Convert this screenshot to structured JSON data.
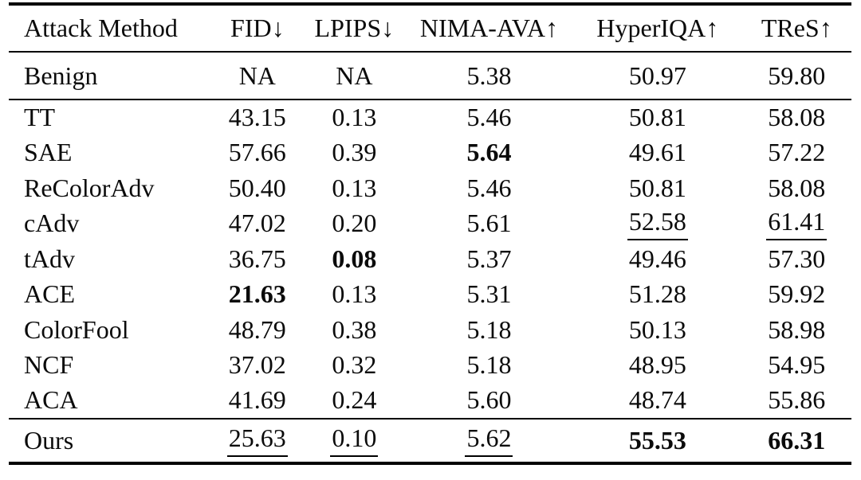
{
  "colors": {
    "background": "#ffffff",
    "text": "#0b0b0b",
    "rule": "#000000"
  },
  "table": {
    "header": {
      "cells": [
        {
          "label": "Attack Method",
          "arrow": ""
        },
        {
          "label": "FID",
          "arrow": "↓"
        },
        {
          "label": "LPIPS",
          "arrow": "↓"
        },
        {
          "label": "NIMA-AVA",
          "arrow": "↑"
        },
        {
          "label": "HyperIQA",
          "arrow": "↑"
        },
        {
          "label": "TReS",
          "arrow": "↑"
        }
      ]
    },
    "sections": [
      {
        "name": "benign",
        "rows": [
          {
            "method": "Benign",
            "cells": [
              {
                "text": "NA",
                "style": "normal"
              },
              {
                "text": "NA",
                "style": "normal"
              },
              {
                "text": "5.38",
                "style": "normal"
              },
              {
                "text": "50.97",
                "style": "normal"
              },
              {
                "text": "59.80",
                "style": "normal"
              }
            ]
          }
        ]
      },
      {
        "name": "attacks",
        "rows": [
          {
            "method": "TT",
            "cells": [
              {
                "text": "43.15",
                "style": "normal"
              },
              {
                "text": "0.13",
                "style": "normal"
              },
              {
                "text": "5.46",
                "style": "normal"
              },
              {
                "text": "50.81",
                "style": "normal"
              },
              {
                "text": "58.08",
                "style": "normal"
              }
            ]
          },
          {
            "method": "SAE",
            "cells": [
              {
                "text": "57.66",
                "style": "normal"
              },
              {
                "text": "0.39",
                "style": "normal"
              },
              {
                "text": "5.64",
                "style": "bold"
              },
              {
                "text": "49.61",
                "style": "normal"
              },
              {
                "text": "57.22",
                "style": "normal"
              }
            ]
          },
          {
            "method": "ReColorAdv",
            "cells": [
              {
                "text": "50.40",
                "style": "normal"
              },
              {
                "text": "0.13",
                "style": "normal"
              },
              {
                "text": "5.46",
                "style": "normal"
              },
              {
                "text": "50.81",
                "style": "normal"
              },
              {
                "text": "58.08",
                "style": "normal"
              }
            ]
          },
          {
            "method": "cAdv",
            "cells": [
              {
                "text": "47.02",
                "style": "normal"
              },
              {
                "text": "0.20",
                "style": "normal"
              },
              {
                "text": "5.61",
                "style": "normal"
              },
              {
                "text": "52.58",
                "style": "underline"
              },
              {
                "text": "61.41",
                "style": "underline"
              }
            ]
          },
          {
            "method": "tAdv",
            "cells": [
              {
                "text": "36.75",
                "style": "normal"
              },
              {
                "text": "0.08",
                "style": "bold"
              },
              {
                "text": "5.37",
                "style": "normal"
              },
              {
                "text": "49.46",
                "style": "normal"
              },
              {
                "text": "57.30",
                "style": "normal"
              }
            ]
          },
          {
            "method": "ACE",
            "cells": [
              {
                "text": "21.63",
                "style": "bold"
              },
              {
                "text": "0.13",
                "style": "normal"
              },
              {
                "text": "5.31",
                "style": "normal"
              },
              {
                "text": "51.28",
                "style": "normal"
              },
              {
                "text": "59.92",
                "style": "normal"
              }
            ]
          },
          {
            "method": "ColorFool",
            "cells": [
              {
                "text": "48.79",
                "style": "normal"
              },
              {
                "text": "0.38",
                "style": "normal"
              },
              {
                "text": "5.18",
                "style": "normal"
              },
              {
                "text": "50.13",
                "style": "normal"
              },
              {
                "text": "58.98",
                "style": "normal"
              }
            ]
          },
          {
            "method": "NCF",
            "cells": [
              {
                "text": "37.02",
                "style": "normal"
              },
              {
                "text": "0.32",
                "style": "normal"
              },
              {
                "text": "5.18",
                "style": "normal"
              },
              {
                "text": "48.95",
                "style": "normal"
              },
              {
                "text": "54.95",
                "style": "normal"
              }
            ]
          },
          {
            "method": "ACA",
            "cells": [
              {
                "text": "41.69",
                "style": "normal"
              },
              {
                "text": "0.24",
                "style": "normal"
              },
              {
                "text": "5.60",
                "style": "normal"
              },
              {
                "text": "48.74",
                "style": "normal"
              },
              {
                "text": "55.86",
                "style": "normal"
              }
            ]
          }
        ]
      },
      {
        "name": "ours",
        "rows": [
          {
            "method": "Ours",
            "cells": [
              {
                "text": "25.63",
                "style": "underline"
              },
              {
                "text": "0.10",
                "style": "underline"
              },
              {
                "text": "5.62",
                "style": "underline"
              },
              {
                "text": "55.53",
                "style": "bold"
              },
              {
                "text": "66.31",
                "style": "bold"
              }
            ]
          }
        ]
      }
    ]
  }
}
